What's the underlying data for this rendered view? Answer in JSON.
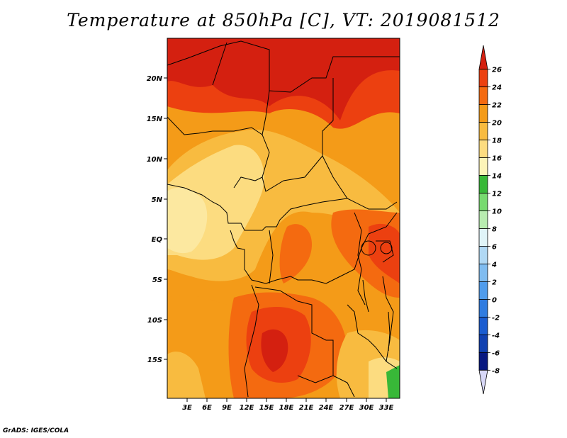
{
  "title": "Temperature at 850hPa [C], VT: 2019081512",
  "credit": "GrADS: IGES/COLA",
  "map": {
    "lat_labels": [
      "20N",
      "15N",
      "10N",
      "5N",
      "EQ",
      "5S",
      "10S",
      "15S"
    ],
    "lon_labels": [
      "3E",
      "6E",
      "9E",
      "12E",
      "15E",
      "18E",
      "21E",
      "24E",
      "27E",
      "30E",
      "33E"
    ]
  },
  "colorbar": {
    "levels": [
      "26",
      "24",
      "22",
      "20",
      "18",
      "16",
      "14",
      "12",
      "10",
      "8",
      "6",
      "4",
      "2",
      "0",
      "-2",
      "-4",
      "-6",
      "-8"
    ],
    "colors": [
      "#d42010",
      "#ec4010",
      "#f46a10",
      "#f49b18",
      "#f8bb40",
      "#fcdc80",
      "#fcf4b8",
      "#38b838",
      "#78da70",
      "#b8ecb0",
      "#e0f4f8",
      "#b0d8f4",
      "#80bcf0",
      "#509cec",
      "#307ce0",
      "#1a5cd0",
      "#1040b0",
      "#081880",
      "#d8d8f8"
    ]
  }
}
